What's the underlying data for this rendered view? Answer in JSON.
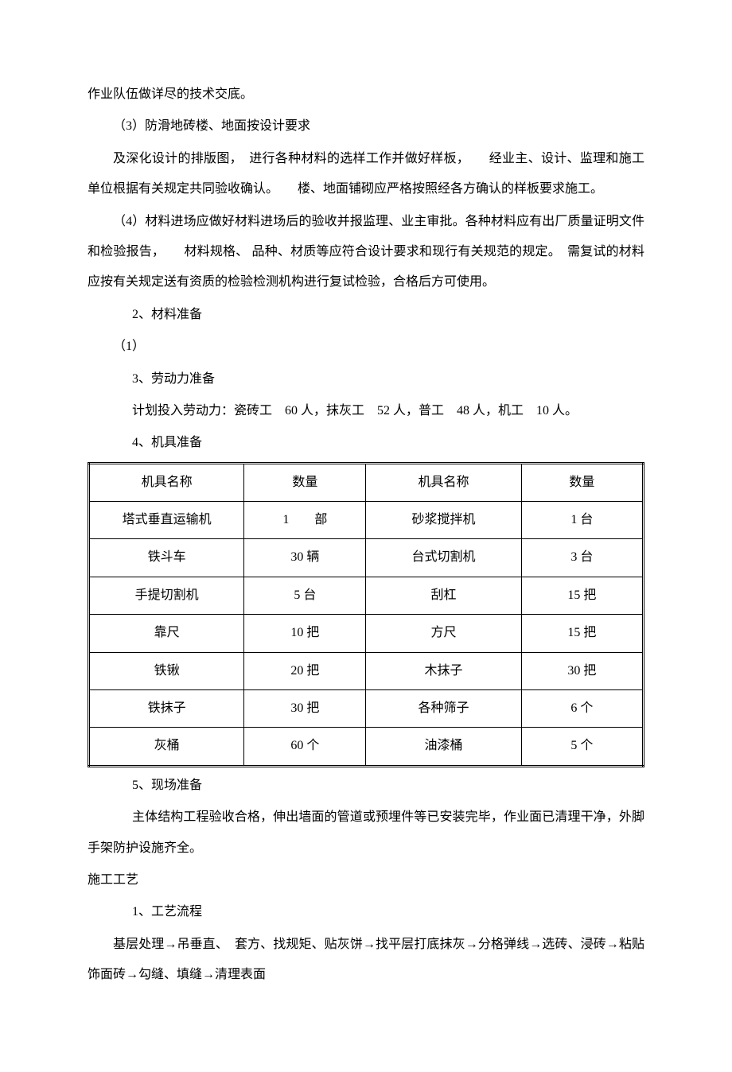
{
  "paragraphs": {
    "p1": "作业队伍做详尽的技术交底。",
    "p2": "（3）防滑地砖楼、地面按设计要求",
    "p3": "及深化设计的排版图，　进行各种材料的选样工作并做好样板，　　经业主、设计、监理和施工单位根据有关规定共同验收确认。　　楼、地面铺砌应严格按照经各方确认的样板要求施工。",
    "p4": "（4）材料进场应做好材料进场后的验收并报监理、业主审批。各种材料应有出厂质量证明文件和检验报告，　　材料规格、 品种、材质等应符合设计要求和现行有关规范的规定。　需复试的材料应按有关规定送有资质的检验检测机构进行复试检验，合格后方可使用。",
    "p5": "2、材料准备",
    "p6": "（1）",
    "p7": "3、劳动力准备",
    "p8": "计划投入劳动力：瓷砖工　60 人，抹灰工　52 人，普工　48 人，机工　10 人。",
    "p9": "4、机具准备",
    "p10": "5、现场准备",
    "p11": "主体结构工程验收合格，伸出墙面的管道或预埋件等已安装完毕，作业面已清理干净，外脚手架防护设施齐全。",
    "p12": "施工工艺",
    "p13": "1、工艺流程",
    "p14": "基层处理→吊垂直、　套方、找规矩、贴灰饼→找平层打底抹灰→分格弹线→选砖、浸砖→粘贴饰面砖→勾缝、填缝→清理表面"
  },
  "table": {
    "headers": [
      "机具名称",
      "数量",
      "机具名称",
      "数量"
    ],
    "rows": [
      [
        "塔式垂直运输机",
        "1　　部",
        "砂浆搅拌机",
        "1 台"
      ],
      [
        "铁斗车",
        "30 辆",
        "台式切割机",
        "3 台"
      ],
      [
        "手提切割机",
        "5 台",
        "刮杠",
        "15 把"
      ],
      [
        "靠尺",
        "10 把",
        "方尺",
        "15 把"
      ],
      [
        "铁锹",
        "20 把",
        "木抹子",
        "30 把"
      ],
      [
        "铁抹子",
        "30 把",
        "各种筛子",
        "6 个"
      ],
      [
        "灰桶",
        "60 个",
        "油漆桶",
        "5 个"
      ]
    ]
  }
}
